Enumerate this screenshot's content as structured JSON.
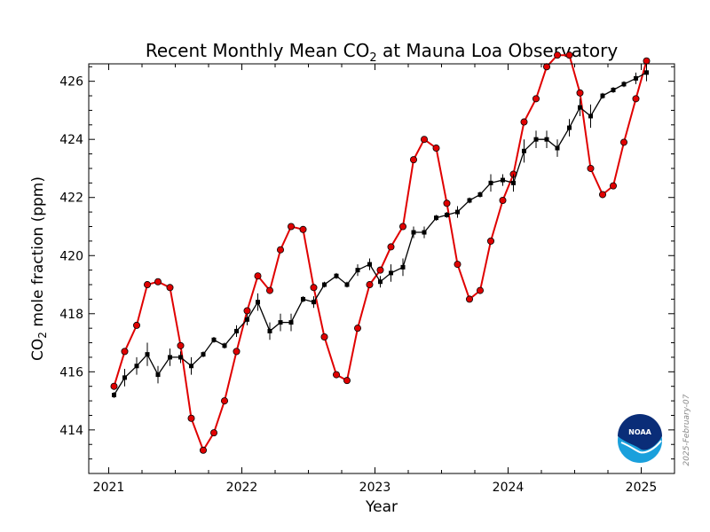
{
  "chart_data": {
    "type": "line",
    "title_main": "Recent Monthly Mean CO",
    "title_sub": "2",
    "title_rest": " at Mauna Loa Observatory",
    "ylabel_main": "CO",
    "ylabel_sub": "2",
    "ylabel_rest": " mole fraction (ppm)",
    "xlabel": "Year",
    "xlim": [
      2020.85,
      2025.25
    ],
    "ylim": [
      412.5,
      426.6
    ],
    "x_ticks": [
      {
        "value": 2021,
        "label": "2021"
      },
      {
        "value": 2022,
        "label": "2022"
      },
      {
        "value": 2023,
        "label": "2023"
      },
      {
        "value": 2024,
        "label": "2024"
      },
      {
        "value": 2025,
        "label": "2025"
      }
    ],
    "y_ticks": [
      {
        "value": 414,
        "label": "414"
      },
      {
        "value": 416,
        "label": "416"
      },
      {
        "value": 418,
        "label": "418"
      },
      {
        "value": 420,
        "label": "420"
      },
      {
        "value": 422,
        "label": "422"
      },
      {
        "value": 424,
        "label": "424"
      },
      {
        "value": 426,
        "label": "426"
      }
    ],
    "grid": false,
    "series": [
      {
        "color": "#e00000",
        "marker": "circle",
        "x": [
          2021.04,
          2021.12,
          2021.21,
          2021.29,
          2021.37,
          2021.46,
          2021.54,
          2021.62,
          2021.71,
          2021.79,
          2021.87,
          2021.96,
          2022.04,
          2022.12,
          2022.21,
          2022.29,
          2022.37,
          2022.46,
          2022.54,
          2022.62,
          2022.71,
          2022.79,
          2022.87,
          2022.96,
          2023.04,
          2023.12,
          2023.21,
          2023.29,
          2023.37,
          2023.46,
          2023.54,
          2023.62,
          2023.71,
          2023.79,
          2023.87,
          2023.96,
          2024.04,
          2024.12,
          2024.21,
          2024.29,
          2024.37,
          2024.46,
          2024.54,
          2024.62,
          2024.71,
          2024.79,
          2024.87,
          2024.96,
          2025.04
        ],
        "y": [
          415.5,
          416.7,
          417.6,
          419.0,
          419.1,
          418.9,
          416.9,
          414.4,
          413.3,
          413.9,
          415.0,
          416.7,
          418.1,
          419.3,
          418.8,
          420.2,
          421.0,
          420.9,
          418.9,
          417.2,
          415.9,
          415.7,
          417.5,
          419.0,
          419.5,
          420.3,
          421.0,
          423.3,
          424.0,
          423.7,
          421.8,
          419.7,
          418.5,
          418.8,
          420.5,
          421.9,
          422.8,
          424.6,
          425.4,
          426.5,
          426.9,
          426.9,
          425.6,
          423.0,
          422.1,
          422.4,
          423.9,
          425.4,
          426.7
        ]
      },
      {
        "color": "#000000",
        "marker": "square",
        "x": [
          2021.04,
          2021.12,
          2021.21,
          2021.29,
          2021.37,
          2021.46,
          2021.54,
          2021.62,
          2021.71,
          2021.79,
          2021.87,
          2021.96,
          2022.04,
          2022.12,
          2022.21,
          2022.29,
          2022.37,
          2022.46,
          2022.54,
          2022.62,
          2022.71,
          2022.79,
          2022.87,
          2022.96,
          2023.04,
          2023.12,
          2023.21,
          2023.29,
          2023.37,
          2023.46,
          2023.54,
          2023.62,
          2023.71,
          2023.79,
          2023.87,
          2023.96,
          2024.04,
          2024.12,
          2024.21,
          2024.29,
          2024.37,
          2024.46,
          2024.54,
          2024.62,
          2024.71,
          2024.79,
          2024.87,
          2024.96,
          2025.04
        ],
        "y": [
          415.2,
          415.8,
          416.2,
          416.6,
          415.9,
          416.5,
          416.5,
          416.2,
          416.6,
          417.1,
          416.9,
          417.4,
          417.8,
          418.4,
          417.4,
          417.7,
          417.7,
          418.5,
          418.4,
          419.0,
          419.3,
          419.0,
          419.5,
          419.7,
          419.1,
          419.4,
          419.6,
          420.8,
          420.8,
          421.3,
          421.4,
          421.5,
          421.9,
          422.1,
          422.5,
          422.6,
          422.5,
          423.6,
          424.0,
          424.0,
          423.7,
          424.4,
          425.1,
          424.8,
          425.5,
          425.7,
          425.9,
          426.1,
          426.3
        ],
        "err": [
          0.1,
          0.3,
          0.3,
          0.4,
          0.3,
          0.3,
          0.2,
          0.3,
          0.1,
          0.1,
          0.1,
          0.2,
          0.2,
          0.3,
          0.3,
          0.3,
          0.3,
          0.1,
          0.2,
          0.1,
          0.1,
          0.1,
          0.2,
          0.2,
          0.2,
          0.3,
          0.3,
          0.2,
          0.2,
          0.1,
          0.1,
          0.2,
          0.1,
          0.1,
          0.3,
          0.2,
          0.3,
          0.4,
          0.3,
          0.3,
          0.3,
          0.3,
          0.3,
          0.4,
          0.1,
          0.1,
          0.1,
          0.2,
          0.3
        ]
      }
    ],
    "date_stamp": "2025-February-07",
    "logo_text": "NOAA"
  }
}
